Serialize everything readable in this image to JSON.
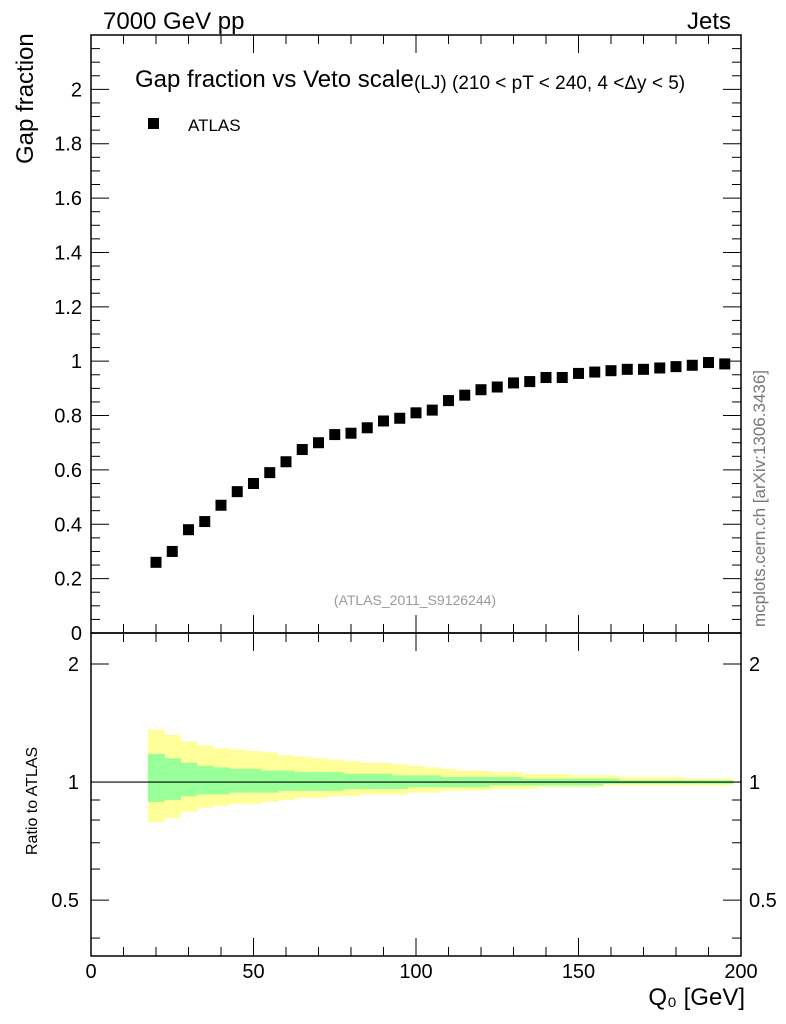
{
  "header": {
    "energy_label": "7000 GeV pp",
    "process_label": "Jets"
  },
  "side_label": "mcplots.cern.ch [arXiv:1306.3436]",
  "chart_data": [
    {
      "type": "scatter",
      "panel": "main",
      "title_main": "Gap fraction vs Veto scale",
      "title_sub": "(LJ) (210 < pT < 240, 4 <Δy < 5)",
      "ylabel": "Gap fraction",
      "watermark": "(ATLAS_2011_S9126244)",
      "xlim": [
        0,
        200
      ],
      "ylim": [
        0,
        2.2
      ],
      "y_ticks": [
        {
          "v": 0,
          "label": "0"
        },
        {
          "v": 0.2,
          "label": "0.2"
        },
        {
          "v": 0.4,
          "label": "0.4"
        },
        {
          "v": 0.6,
          "label": "0.6"
        },
        {
          "v": 0.8,
          "label": "0.8"
        },
        {
          "v": 1.0,
          "label": "1"
        },
        {
          "v": 1.2,
          "label": "1.2"
        },
        {
          "v": 1.4,
          "label": "1.4"
        },
        {
          "v": 1.6,
          "label": "1.6"
        },
        {
          "v": 1.8,
          "label": "1.8"
        },
        {
          "v": 2.0,
          "label": "2"
        }
      ],
      "legend_position": "top-left",
      "series": [
        {
          "name": "ATLAS",
          "marker": "square",
          "color": "#000000",
          "x": [
            20,
            25,
            30,
            35,
            40,
            45,
            50,
            55,
            60,
            65,
            70,
            75,
            80,
            85,
            90,
            95,
            100,
            105,
            110,
            115,
            120,
            125,
            130,
            135,
            140,
            145,
            150,
            155,
            160,
            165,
            170,
            175,
            180,
            185,
            190,
            195
          ],
          "y": [
            0.26,
            0.3,
            0.38,
            0.41,
            0.47,
            0.52,
            0.55,
            0.59,
            0.63,
            0.675,
            0.7,
            0.73,
            0.735,
            0.755,
            0.78,
            0.79,
            0.81,
            0.82,
            0.855,
            0.875,
            0.895,
            0.905,
            0.92,
            0.925,
            0.94,
            0.94,
            0.955,
            0.96,
            0.965,
            0.97,
            0.97,
            0.975,
            0.98,
            0.985,
            0.995,
            0.99
          ]
        }
      ]
    },
    {
      "type": "area",
      "panel": "ratio",
      "ylabel": "Ratio to ATLAS",
      "xlabel": "Q₀ [GeV]",
      "xlim": [
        0,
        200
      ],
      "ylim": [
        0.36,
        2.4
      ],
      "y_ticks": [
        {
          "v": 0.5,
          "label": "0.5"
        },
        {
          "v": 1,
          "label": "1"
        },
        {
          "v": 2,
          "label": "2"
        }
      ],
      "x_ticks": [
        {
          "v": 0,
          "label": "0"
        },
        {
          "v": 50,
          "label": "50"
        },
        {
          "v": 100,
          "label": "100"
        },
        {
          "v": 150,
          "label": "150"
        },
        {
          "v": 200,
          "label": "200"
        }
      ],
      "reference_line": 1,
      "bins": [
        17.5,
        22.5,
        27.5,
        32.5,
        37.5,
        42.5,
        47.5,
        52.5,
        57.5,
        62.5,
        67.5,
        72.5,
        77.5,
        82.5,
        87.5,
        92.5,
        97.5,
        102.5,
        107.5,
        112.5,
        117.5,
        122.5,
        127.5,
        132.5,
        137.5,
        142.5,
        147.5,
        152.5,
        157.5,
        162.5,
        167.5,
        172.5,
        177.5,
        182.5,
        187.5,
        192.5,
        197.5
      ],
      "bands": [
        {
          "name": "total",
          "color": "#ffff99",
          "upper": [
            1.36,
            1.32,
            1.27,
            1.24,
            1.22,
            1.21,
            1.2,
            1.19,
            1.17,
            1.16,
            1.15,
            1.14,
            1.13,
            1.12,
            1.12,
            1.11,
            1.1,
            1.09,
            1.08,
            1.07,
            1.07,
            1.06,
            1.06,
            1.05,
            1.05,
            1.05,
            1.04,
            1.04,
            1.04,
            1.03,
            1.03,
            1.03,
            1.03,
            1.02,
            1.02,
            1.02
          ],
          "lower": [
            0.79,
            0.81,
            0.84,
            0.86,
            0.87,
            0.88,
            0.88,
            0.89,
            0.9,
            0.91,
            0.91,
            0.92,
            0.92,
            0.93,
            0.93,
            0.93,
            0.94,
            0.94,
            0.95,
            0.95,
            0.95,
            0.96,
            0.96,
            0.96,
            0.97,
            0.97,
            0.97,
            0.97,
            0.98,
            0.98,
            0.98,
            0.98,
            0.98,
            0.98,
            0.98,
            0.98
          ]
        },
        {
          "name": "stat",
          "color": "#99ff99",
          "upper": [
            1.18,
            1.15,
            1.12,
            1.1,
            1.09,
            1.08,
            1.08,
            1.07,
            1.07,
            1.06,
            1.06,
            1.06,
            1.05,
            1.05,
            1.05,
            1.04,
            1.04,
            1.04,
            1.03,
            1.03,
            1.03,
            1.03,
            1.03,
            1.02,
            1.02,
            1.02,
            1.02,
            1.02,
            1.02,
            1.01,
            1.01,
            1.01,
            1.01,
            1.01,
            1.01,
            1.01
          ],
          "lower": [
            0.89,
            0.9,
            0.92,
            0.93,
            0.93,
            0.94,
            0.94,
            0.94,
            0.95,
            0.95,
            0.95,
            0.95,
            0.96,
            0.96,
            0.96,
            0.96,
            0.97,
            0.97,
            0.97,
            0.97,
            0.97,
            0.98,
            0.98,
            0.98,
            0.98,
            0.98,
            0.98,
            0.98,
            0.99,
            0.99,
            0.99,
            0.99,
            0.99,
            0.99,
            0.99,
            0.99
          ]
        }
      ]
    }
  ]
}
